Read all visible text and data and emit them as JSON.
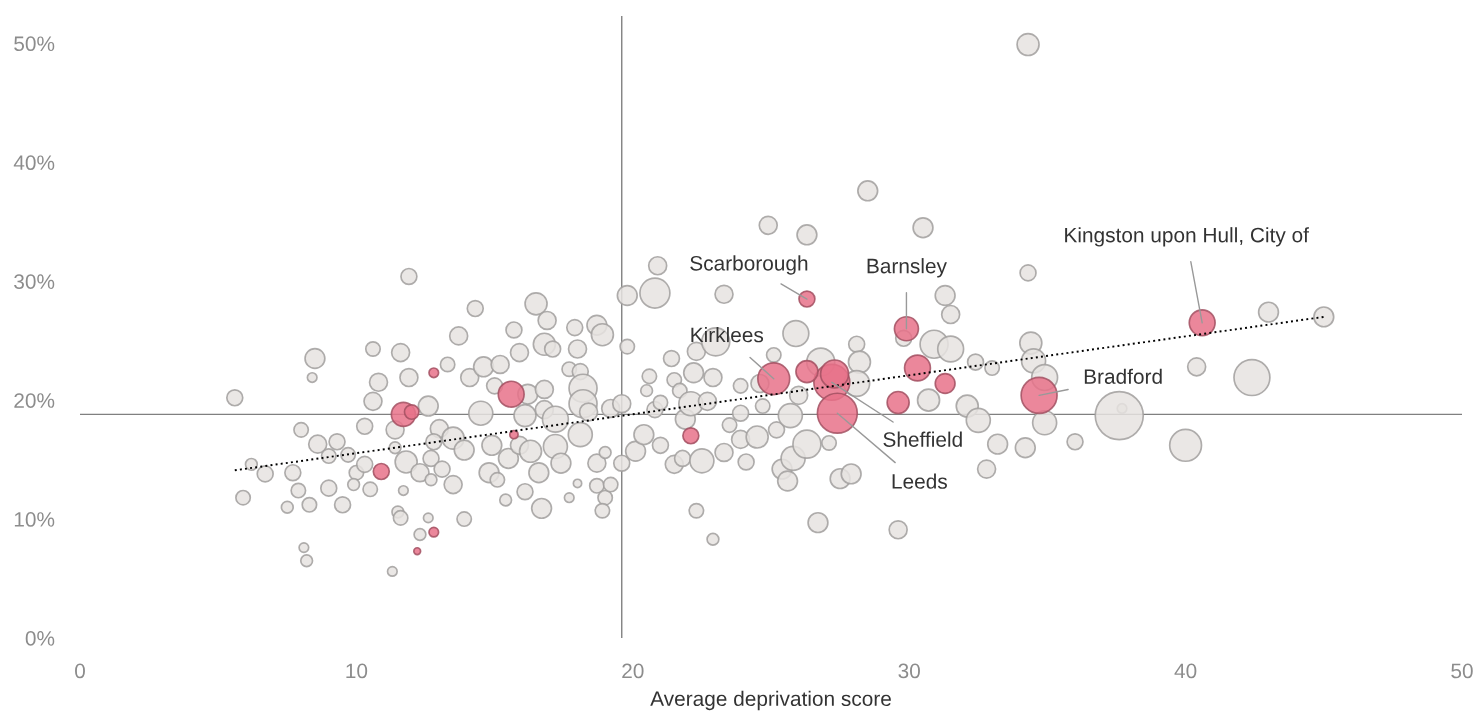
{
  "chart_data": {
    "type": "bubble",
    "xlabel": "Average deprivation score",
    "xlim": [
      0,
      50
    ],
    "xticks": [
      0,
      10,
      20,
      30,
      40,
      50
    ],
    "ylim": [
      0,
      52.3
    ],
    "yticks": [
      {
        "value": 0,
        "label": "0%"
      },
      {
        "value": 10,
        "label": "10%"
      },
      {
        "value": 20,
        "label": "20%"
      },
      {
        "value": 30,
        "label": "30%"
      },
      {
        "value": 40,
        "label": "40%"
      },
      {
        "value": 50,
        "label": "50%"
      }
    ],
    "grid": false,
    "series": [
      {
        "color": "#e6e3e1",
        "x": [
          5.6,
          5.9,
          6.2,
          6.7,
          7.5,
          7.7,
          8.0,
          8.5,
          8.4,
          7.9,
          8.3,
          8.1,
          8.2,
          8.6,
          9.0,
          9.3,
          9.7,
          9.0,
          9.5,
          10.0,
          9.9,
          10.5,
          10.3,
          10.6,
          10.8,
          10.6,
          10.3,
          11.4,
          11.4,
          11.6,
          11.9,
          11.9,
          11.8,
          11.7,
          11.5,
          11.3,
          11.6,
          12.3,
          12.7,
          12.6,
          13.0,
          12.8,
          12.7,
          13.1,
          12.6,
          12.3,
          13.3,
          13.7,
          14.3,
          14.1,
          13.5,
          13.5,
          13.9,
          13.9,
          14.5,
          14.6,
          15.2,
          15.0,
          14.9,
          14.8,
          15.1,
          15.4,
          15.5,
          16.1,
          15.7,
          15.9,
          16.2,
          15.9,
          16.1,
          16.3,
          16.5,
          16.9,
          16.8,
          17.1,
          16.8,
          16.8,
          16.6,
          16.7,
          17.2,
          17.2,
          17.4,
          17.7,
          17.7,
          17.9,
          18.0,
          18.1,
          18.2,
          18.2,
          18.1,
          18.0,
          18.7,
          18.9,
          18.4,
          18.7,
          19.0,
          18.7,
          19.0,
          18.9,
          19.2,
          19.2,
          19.8,
          19.8,
          19.6,
          19.6,
          20.1,
          20.4,
          20.8,
          20.9,
          20.8,
          20.6,
          20.5,
          21.0,
          21.0,
          21.4,
          21.5,
          21.7,
          21.5,
          21.8,
          21.9,
          22.1,
          22.2,
          22.3,
          22.3,
          22.5,
          22.7,
          22.9,
          23.0,
          23.3,
          22.9,
          23.3,
          23.5,
          23.9,
          24.1,
          24.5,
          23.9,
          23.9,
          24.6,
          24.7,
          24.9,
          25.1,
          25.2,
          25.4,
          25.6,
          25.7,
          25.8,
          25.9,
          26.0,
          26.3,
          26.3,
          26.7,
          26.8,
          27.1,
          27.5,
          27.9,
          28.1,
          28.2,
          28.1,
          28.5,
          29.6,
          29.8,
          30.5,
          30.7,
          30.9,
          31.3,
          31.5,
          31.5,
          32.1,
          32.4,
          32.5,
          32.8,
          33.0,
          33.2,
          34.3,
          34.4,
          34.5,
          34.9,
          34.9,
          34.2,
          36.0,
          37.7,
          37.6,
          40.0,
          40.4,
          42.4,
          43.0,
          45.0,
          34.3
        ],
        "values": [
          20.2,
          11.8,
          14.6,
          13.8,
          11.0,
          13.9,
          17.5,
          23.5,
          21.9,
          12.4,
          11.2,
          7.6,
          6.5,
          16.3,
          15.3,
          16.5,
          15.4,
          12.6,
          11.2,
          13.9,
          12.9,
          12.5,
          14.6,
          24.3,
          21.5,
          19.9,
          17.8,
          17.5,
          16.0,
          24.0,
          30.4,
          21.9,
          14.8,
          12.4,
          10.6,
          5.6,
          10.1,
          13.9,
          13.3,
          19.5,
          17.6,
          16.5,
          15.1,
          14.2,
          10.1,
          8.7,
          23.0,
          25.4,
          27.7,
          21.9,
          16.8,
          12.9,
          10.0,
          15.8,
          18.9,
          22.8,
          23.0,
          21.2,
          16.2,
          13.9,
          13.3,
          11.6,
          15.1,
          18.7,
          25.9,
          24.0,
          20.5,
          16.2,
          12.3,
          15.7,
          28.1,
          26.7,
          24.7,
          24.3,
          20.9,
          19.2,
          13.9,
          10.9,
          18.4,
          16.1,
          14.7,
          11.8,
          22.6,
          26.1,
          24.3,
          22.4,
          21.0,
          19.7,
          17.1,
          13.0,
          26.3,
          25.5,
          19.0,
          14.7,
          15.6,
          12.8,
          11.8,
          10.7,
          12.9,
          19.3,
          28.8,
          24.5,
          19.7,
          14.7,
          15.7,
          17.1,
          19.2,
          31.3,
          29.0,
          22.0,
          20.8,
          19.8,
          16.2,
          23.5,
          21.7,
          20.8,
          14.6,
          15.1,
          18.4,
          19.7,
          22.3,
          24.1,
          10.7,
          14.9,
          19.9,
          21.9,
          24.9,
          28.9,
          8.3,
          15.6,
          17.9,
          16.7,
          14.8,
          16.9,
          18.9,
          21.2,
          21.4,
          19.5,
          34.7,
          23.8,
          17.5,
          14.2,
          13.2,
          18.7,
          15.1,
          25.6,
          20.4,
          33.9,
          16.3,
          9.7,
          23.2,
          16.4,
          13.4,
          13.8,
          24.7,
          23.2,
          21.4,
          37.6,
          9.1,
          25.2,
          34.5,
          20.0,
          24.7,
          28.8,
          27.2,
          24.3,
          19.5,
          23.2,
          18.3,
          14.2,
          22.7,
          16.3,
          30.7,
          24.8,
          23.3,
          21.9,
          18.1,
          16.0,
          16.5,
          19.3,
          18.7,
          16.2,
          22.8,
          21.9,
          27.4,
          27.0,
          49.9
        ],
        "sizes": [
          0.11,
          0.09,
          0.06,
          0.11,
          0.06,
          0.11,
          0.09,
          0.17,
          0.04,
          0.09,
          0.09,
          0.04,
          0.06,
          0.14,
          0.09,
          0.11,
          0.09,
          0.11,
          0.11,
          0.09,
          0.06,
          0.09,
          0.11,
          0.09,
          0.14,
          0.14,
          0.11,
          0.14,
          0.06,
          0.14,
          0.11,
          0.14,
          0.21,
          0.04,
          0.06,
          0.04,
          0.09,
          0.14,
          0.06,
          0.17,
          0.14,
          0.11,
          0.11,
          0.11,
          0.04,
          0.06,
          0.09,
          0.14,
          0.11,
          0.14,
          0.21,
          0.14,
          0.09,
          0.17,
          0.25,
          0.17,
          0.14,
          0.11,
          0.17,
          0.17,
          0.09,
          0.06,
          0.17,
          0.21,
          0.11,
          0.14,
          0.17,
          0.14,
          0.11,
          0.21,
          0.21,
          0.14,
          0.21,
          0.11,
          0.14,
          0.14,
          0.17,
          0.17,
          0.29,
          0.25,
          0.17,
          0.04,
          0.09,
          0.11,
          0.14,
          0.11,
          0.34,
          0.34,
          0.25,
          0.03,
          0.17,
          0.21,
          0.14,
          0.14,
          0.06,
          0.09,
          0.09,
          0.09,
          0.09,
          0.14,
          0.17,
          0.09,
          0.14,
          0.11,
          0.17,
          0.17,
          0.11,
          0.14,
          0.39,
          0.09,
          0.06,
          0.09,
          0.11,
          0.11,
          0.09,
          0.09,
          0.14,
          0.11,
          0.17,
          0.25,
          0.17,
          0.14,
          0.09,
          0.25,
          0.14,
          0.14,
          0.34,
          0.14,
          0.06,
          0.14,
          0.09,
          0.14,
          0.11,
          0.21,
          0.11,
          0.09,
          0.14,
          0.09,
          0.14,
          0.09,
          0.11,
          0.17,
          0.17,
          0.25,
          0.25,
          0.29,
          0.14,
          0.17,
          0.34,
          0.17,
          0.34,
          0.09,
          0.17,
          0.17,
          0.11,
          0.21,
          0.29,
          0.17,
          0.14,
          0.11,
          0.17,
          0.21,
          0.34,
          0.17,
          0.14,
          0.29,
          0.21,
          0.11,
          0.25,
          0.14,
          0.09,
          0.17,
          0.11,
          0.21,
          0.25,
          0.29,
          0.25,
          0.17,
          0.11,
          0.04,
          1,
          0.44,
          0.14,
          0.56,
          0.17,
          0.17,
          0.21
        ]
      },
      {
        "color": "#e8728a",
        "x": [
          40.6,
          34.7,
          29.9,
          26.3,
          25.1,
          27.2,
          27.4,
          26.3,
          27.3,
          30.3,
          31.3,
          29.6,
          22.1,
          15.6,
          11.7,
          12.0,
          12.8,
          15.7,
          10.9,
          12.8,
          12.2
        ],
        "values": [
          26.5,
          20.4,
          26.0,
          28.5,
          21.8,
          21.5,
          18.9,
          22.4,
          22.2,
          22.7,
          21.4,
          19.8,
          17.0,
          20.5,
          18.8,
          19.0,
          22.3,
          17.1,
          14.0,
          8.9,
          7.3
        ],
        "sizes": [
          0.29,
          0.56,
          0.25,
          0.11,
          0.44,
          0.56,
          0.69,
          0.21,
          0.34,
          0.29,
          0.17,
          0.21,
          0.11,
          0.29,
          0.25,
          0.09,
          0.04,
          0.03,
          0.11,
          0.04,
          0.02
        ]
      },
      {
        "type": "line",
        "color": "#000000",
        "line_style": "dotted",
        "x": [
          5.6,
          45.0
        ],
        "values": [
          14.1,
          27.0
        ]
      }
    ],
    "ref_lines": [
      {
        "axis": "x",
        "value": 19.6,
        "color": "#808080"
      },
      {
        "axis": "y",
        "value": 18.8,
        "color": "#808080"
      }
    ],
    "annotations": [
      {
        "text": "Scarborough",
        "x": 26.3,
        "y": 28.5
      },
      {
        "text": "Barnsley",
        "x": 29.9,
        "y": 26.0
      },
      {
        "text": "Kingston upon Hull, City of",
        "x": 40.6,
        "y": 26.5
      },
      {
        "text": "Kirklees",
        "x": 25.1,
        "y": 21.8
      },
      {
        "text": "Bradford",
        "x": 34.7,
        "y": 20.4
      },
      {
        "text": "Sheffield",
        "x": 27.2,
        "y": 21.5
      },
      {
        "text": "Leeds",
        "x": 27.4,
        "y": 18.9
      }
    ]
  }
}
